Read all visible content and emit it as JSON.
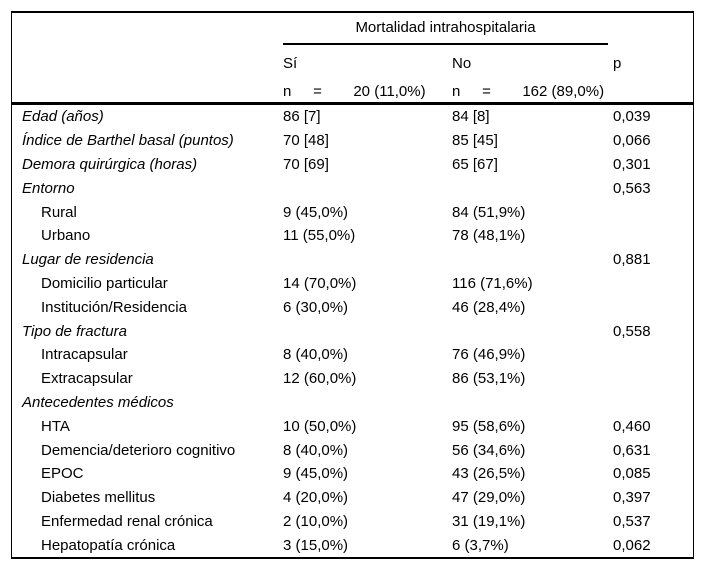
{
  "table": {
    "spanner_title": "Mortalidad intrahospitalaria",
    "headers": {
      "yes": "Sí",
      "no": "No",
      "p": "p"
    },
    "n_row": {
      "yes": {
        "n": "n",
        "eq": "=",
        "value": "20 (11,0%)"
      },
      "no": {
        "n": "n",
        "eq": "=",
        "value": "162 (89,0%)"
      }
    },
    "rows": [
      {
        "label": "Edad (años)",
        "style": "category",
        "yes": "86 [7]",
        "no": "84 [8]",
        "p": "0,039"
      },
      {
        "label": "Índice de Barthel basal (puntos)",
        "style": "category",
        "yes": "70 [48]",
        "no": "85 [45]",
        "p": "0,066"
      },
      {
        "label": "Demora quirúrgica (horas)",
        "style": "category",
        "yes": "70 [69]",
        "no": "65 [67]",
        "p": "0,301"
      },
      {
        "label": "Entorno",
        "style": "category",
        "yes": "",
        "no": "",
        "p": "0,563"
      },
      {
        "label": "Rural",
        "style": "sub",
        "yes": "9 (45,0%)",
        "no": "84 (51,9%)",
        "p": ""
      },
      {
        "label": "Urbano",
        "style": "sub",
        "yes": "11 (55,0%)",
        "no": "78 (48,1%)",
        "p": ""
      },
      {
        "label": "Lugar de residencia",
        "style": "category",
        "yes": "",
        "no": "",
        "p": "0,881"
      },
      {
        "label": "Domicilio particular",
        "style": "sub",
        "yes": "14 (70,0%)",
        "no": "116 (71,6%)",
        "p": ""
      },
      {
        "label": "Institución/Residencia",
        "style": "sub",
        "yes": "6 (30,0%)",
        "no": "46 (28,4%)",
        "p": ""
      },
      {
        "label": "Tipo de fractura",
        "style": "category",
        "yes": "",
        "no": "",
        "p": "0,558"
      },
      {
        "label": "Intracapsular",
        "style": "sub",
        "yes": "8 (40,0%)",
        "no": "76 (46,9%)",
        "p": ""
      },
      {
        "label": "Extracapsular",
        "style": "sub",
        "yes": "12 (60,0%)",
        "no": "86 (53,1%)",
        "p": ""
      },
      {
        "label": "Antecedentes médicos",
        "style": "category",
        "yes": "",
        "no": "",
        "p": ""
      },
      {
        "label": "HTA",
        "style": "sub",
        "yes": "10 (50,0%)",
        "no": "95 (58,6%)",
        "p": "0,460"
      },
      {
        "label": "Demencia/deterioro cognitivo",
        "style": "sub",
        "yes": "8 (40,0%)",
        "no": "56 (34,6%)",
        "p": "0,631"
      },
      {
        "label": "EPOC",
        "style": "sub",
        "yes": "9 (45,0%)",
        "no": "43 (26,5%)",
        "p": "0,085"
      },
      {
        "label": "Diabetes mellitus",
        "style": "sub",
        "yes": "4 (20,0%)",
        "no": "47 (29,0%)",
        "p": "0,397"
      },
      {
        "label": "Enfermedad renal crónica",
        "style": "sub",
        "yes": "2 (10,0%)",
        "no": "31 (19,1%)",
        "p": "0,537"
      },
      {
        "label": "Hepatopatía crónica",
        "style": "sub",
        "yes": "3 (15,0%)",
        "no": "6 (3,7%)",
        "p": "0,062"
      }
    ],
    "colors": {
      "text": "#000000",
      "border": "#000000",
      "background": "#ffffff"
    }
  }
}
